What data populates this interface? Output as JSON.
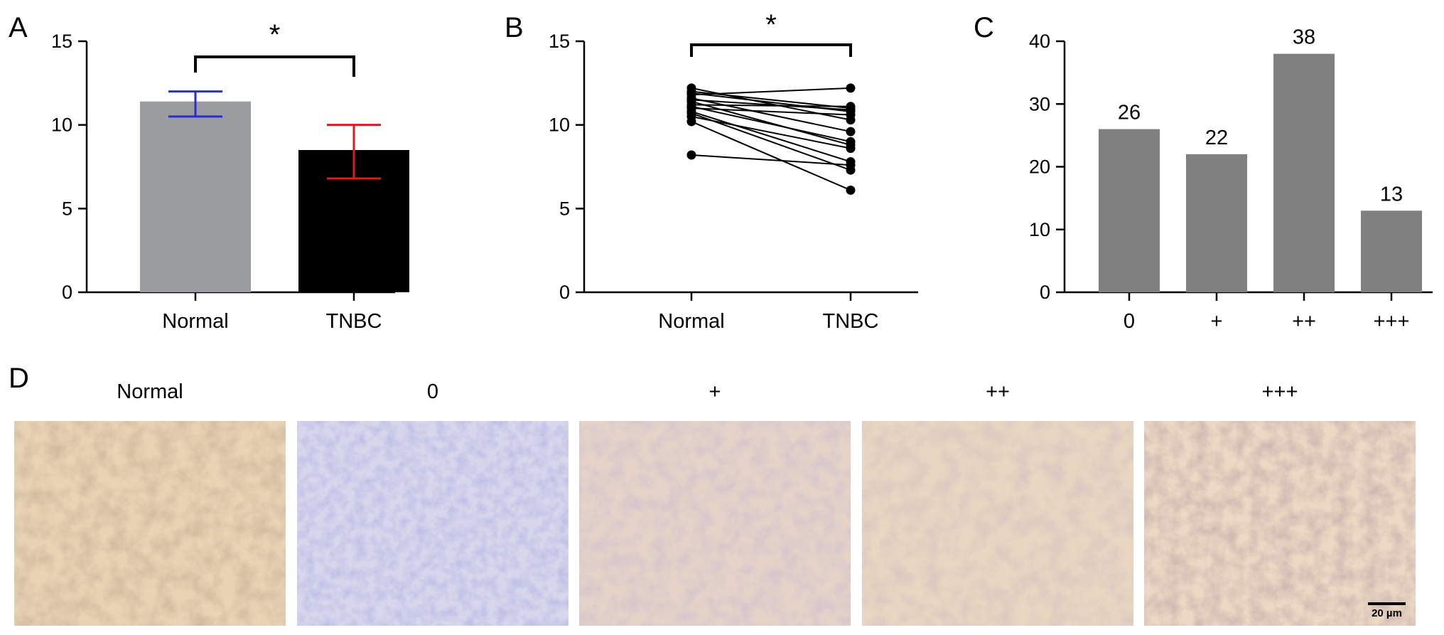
{
  "panels": {
    "A": "A",
    "B": "B",
    "C": "C",
    "D": "D"
  },
  "chart_data": [
    {
      "panel": "A",
      "type": "bar",
      "categories": [
        "Normal",
        "TNBC"
      ],
      "values": [
        11.4,
        8.5
      ],
      "error_low": [
        10.5,
        6.8
      ],
      "error_high": [
        12.0,
        10.0
      ],
      "bar_colors": [
        "#9b9ca0",
        "#000000"
      ],
      "error_colors": [
        "#2b2bd6",
        "#d81e1e"
      ],
      "ylim": [
        0,
        15
      ],
      "yticks": [
        "0",
        "5",
        "10",
        "15"
      ],
      "ytick_values": [
        0,
        5,
        10,
        15
      ],
      "significance": "*",
      "title": "",
      "xlabel": "",
      "ylabel": ""
    },
    {
      "panel": "B",
      "type": "line",
      "categories": [
        "Normal",
        "TNBC"
      ],
      "pairs": [
        [
          12.2,
          10.3
        ],
        [
          12.0,
          11.0
        ],
        [
          11.9,
          10.8
        ],
        [
          11.8,
          12.2
        ],
        [
          11.6,
          9.6
        ],
        [
          11.5,
          10.9
        ],
        [
          11.4,
          8.8
        ],
        [
          11.2,
          11.1
        ],
        [
          11.1,
          9.0
        ],
        [
          11.0,
          10.6
        ],
        [
          10.8,
          7.8
        ],
        [
          10.7,
          7.3
        ],
        [
          10.5,
          8.6
        ],
        [
          10.2,
          6.1
        ],
        [
          8.2,
          7.6
        ]
      ],
      "ylim": [
        0,
        15
      ],
      "yticks": [
        "0",
        "5",
        "10",
        "15"
      ],
      "ytick_values": [
        0,
        5,
        10,
        15
      ],
      "significance": "*",
      "title": "",
      "xlabel": "",
      "ylabel": ""
    },
    {
      "panel": "C",
      "type": "bar",
      "categories": [
        "0",
        "+",
        "++",
        "+++"
      ],
      "values": [
        26,
        22,
        38,
        13
      ],
      "data_labels": [
        "26",
        "22",
        "38",
        "13"
      ],
      "bar_color": "#808080",
      "ylim": [
        0,
        40
      ],
      "yticks": [
        "0",
        "10",
        "20",
        "30",
        "40"
      ],
      "ytick_values": [
        0,
        10,
        20,
        30,
        40
      ],
      "title": "",
      "xlabel": "",
      "ylabel": ""
    }
  ],
  "micrographs": [
    {
      "label": "Normal",
      "tint": "#e8d3b4"
    },
    {
      "label": "0",
      "tint": "#d6d6ec"
    },
    {
      "label": "+",
      "tint": "#e6d3c8"
    },
    {
      "label": "++",
      "tint": "#ead7c2"
    },
    {
      "label": "+++",
      "tint": "#ecd8c4"
    }
  ],
  "scale_bar": "20 µm"
}
